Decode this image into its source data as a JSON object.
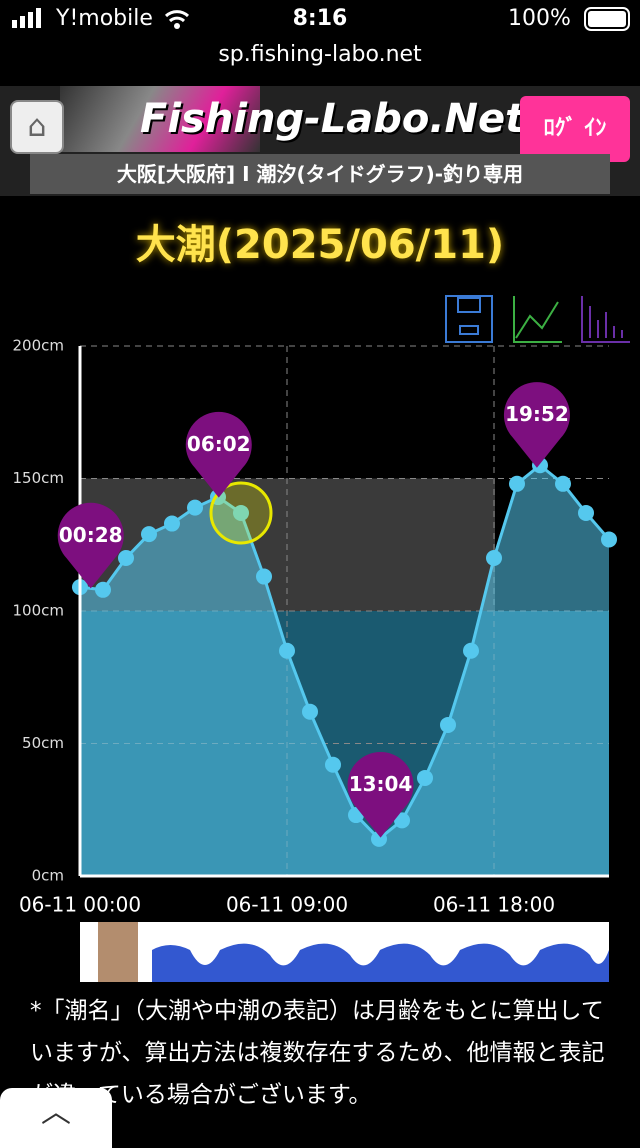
{
  "status_bar": {
    "carrier": "Y!mobile",
    "time": "8:16",
    "battery": "100%"
  },
  "url": "sp.fishing-labo.net",
  "header": {
    "logo": "Fishing-Labo.Net",
    "login": "ﾛｸﾞ ｲﾝ",
    "subtitle": "大阪[大阪府] I 潮汐(タイドグラフ)-釣り専用"
  },
  "chart_data": {
    "type": "area",
    "title": "大潮(2025/06/11)",
    "categories": [
      "06-11 00:00",
      null,
      null,
      null,
      null,
      null,
      null,
      null,
      null,
      "06-11 09:00",
      null,
      null,
      null,
      null,
      null,
      null,
      null,
      null,
      "06-11 18:00",
      null,
      null,
      null,
      null,
      null
    ],
    "values": [
      109,
      108,
      120,
      129,
      133,
      139,
      143,
      137,
      113,
      85,
      62,
      42,
      23,
      14,
      21,
      37,
      57,
      85,
      120,
      148,
      155,
      148,
      137,
      127
    ],
    "color": "#55c8ee",
    "ylim": [
      0,
      200
    ],
    "yticks": [
      {
        "value": 0,
        "label": "0cm"
      },
      {
        "value": 50,
        "label": "50cm"
      },
      {
        "value": 100,
        "label": "100cm"
      },
      {
        "value": 150,
        "label": "150cm"
      },
      {
        "value": 200,
        "label": "200cm"
      }
    ],
    "grid": true,
    "annotations": [
      "00:28",
      "06:02",
      "13:04",
      "19:52"
    ]
  },
  "note": "*「潮名」（大潮や中潮の表記）は月齢をもとに算出していますが、算出方法は複数存在するため、他情報と表記が違っている場合がございます。"
}
